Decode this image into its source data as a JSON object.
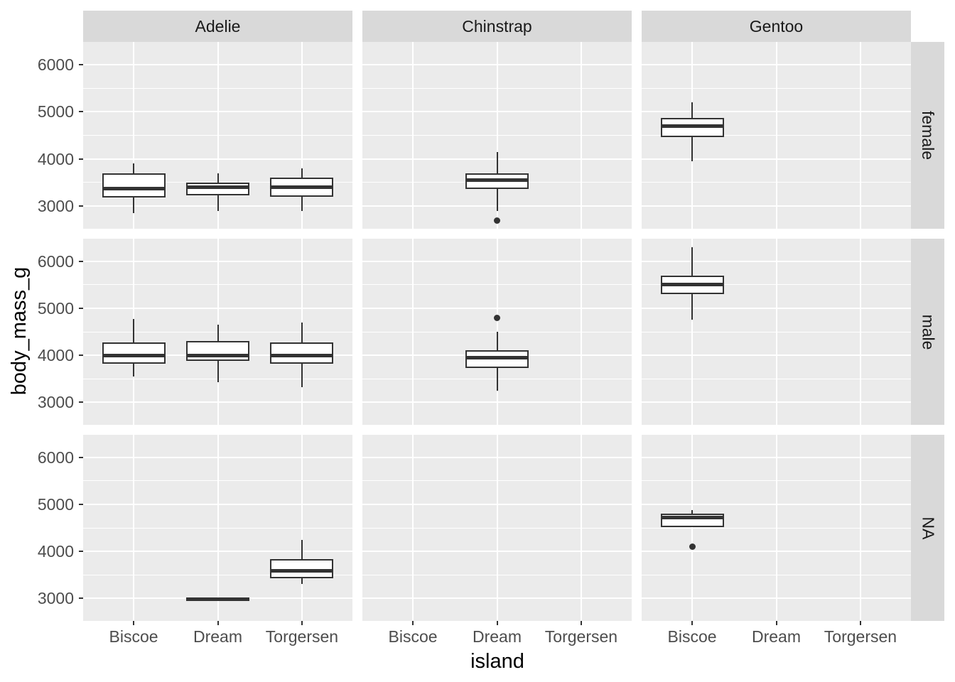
{
  "figure": {
    "background": "#FFFFFF"
  },
  "axes": {
    "x": {
      "label": "island",
      "categories": [
        "Biscoe",
        "Dream",
        "Torgersen"
      ]
    },
    "y": {
      "label": "body_mass_g",
      "tick_values": [
        6000,
        5000,
        4000,
        3000
      ],
      "minor_values": [
        5500,
        4500,
        3500
      ]
    }
  },
  "facets": {
    "col_labels": [
      "Adelie",
      "Chinstrap",
      "Gentoo"
    ],
    "row_labels": [
      "female",
      "male",
      "NA"
    ]
  },
  "theme": {
    "panel_bg": "#EBEBEB",
    "strip_bg": "#D9D9D9",
    "grid": "#FFFFFF",
    "box_stroke": "#333333",
    "box_fill": "#FFFFFF",
    "tick_text": "#4D4D4D",
    "strip_text": "#1A1A1A",
    "axis_title_text": "#000000",
    "tick_mark": "#333333"
  },
  "chart_data": {
    "type": "boxplot",
    "title": "",
    "xlabel": "island",
    "ylabel": "body_mass_g",
    "facet_columns": "species",
    "facet_rows": "sex",
    "ylim": [
      2520,
      6480
    ],
    "y_major_gridlines": [
      3000,
      4000,
      5000,
      6000
    ],
    "y_minor_gridlines": [
      3500,
      4500,
      5500
    ],
    "grid": "on",
    "boxes": [
      {
        "species": "Adelie",
        "sex": "female",
        "island": "Biscoe",
        "whisker_low": 2850,
        "q1": 3175,
        "median": 3375,
        "q3": 3700,
        "whisker_high": 3900,
        "outliers": []
      },
      {
        "species": "Adelie",
        "sex": "female",
        "island": "Dream",
        "whisker_low": 2900,
        "q1": 3225,
        "median": 3400,
        "q3": 3500,
        "whisker_high": 3700,
        "outliers": []
      },
      {
        "species": "Adelie",
        "sex": "female",
        "island": "Torgersen",
        "whisker_low": 2900,
        "q1": 3200,
        "median": 3400,
        "q3": 3600,
        "whisker_high": 3800,
        "outliers": []
      },
      {
        "species": "Chinstrap",
        "sex": "female",
        "island": "Dream",
        "whisker_low": 2900,
        "q1": 3362,
        "median": 3550,
        "q3": 3694,
        "whisker_high": 4150,
        "outliers": [
          2700
        ]
      },
      {
        "species": "Gentoo",
        "sex": "female",
        "island": "Biscoe",
        "whisker_low": 3950,
        "q1": 4462,
        "median": 4700,
        "q3": 4875,
        "whisker_high": 5200,
        "outliers": []
      },
      {
        "species": "Adelie",
        "sex": "male",
        "island": "Biscoe",
        "whisker_low": 3550,
        "q1": 3825,
        "median": 4000,
        "q3": 4275,
        "whisker_high": 4775,
        "outliers": []
      },
      {
        "species": "Adelie",
        "sex": "male",
        "island": "Dream",
        "whisker_low": 3425,
        "q1": 3875,
        "median": 4000,
        "q3": 4300,
        "whisker_high": 4650,
        "outliers": []
      },
      {
        "species": "Adelie",
        "sex": "male",
        "island": "Torgersen",
        "whisker_low": 3325,
        "q1": 3825,
        "median": 4000,
        "q3": 4275,
        "whisker_high": 4700,
        "outliers": []
      },
      {
        "species": "Chinstrap",
        "sex": "male",
        "island": "Dream",
        "whisker_low": 3250,
        "q1": 3731,
        "median": 3950,
        "q3": 4100,
        "whisker_high": 4500,
        "outliers": [
          4800
        ]
      },
      {
        "species": "Gentoo",
        "sex": "male",
        "island": "Biscoe",
        "whisker_low": 4750,
        "q1": 5300,
        "median": 5500,
        "q3": 5700,
        "whisker_high": 6300,
        "outliers": []
      },
      {
        "species": "Adelie",
        "sex": "NA",
        "island": "Dream",
        "whisker_low": 2975,
        "q1": 2975,
        "median": 2975,
        "q3": 2975,
        "whisker_high": 2975,
        "outliers": []
      },
      {
        "species": "Adelie",
        "sex": "NA",
        "island": "Torgersen",
        "whisker_low": 3300,
        "q1": 3431,
        "median": 3588,
        "q3": 3838,
        "whisker_high": 4250,
        "outliers": []
      },
      {
        "species": "Gentoo",
        "sex": "NA",
        "island": "Biscoe",
        "whisker_low": 4512,
        "q1": 4512,
        "median": 4712,
        "q3": 4800,
        "whisker_high": 4875,
        "outliers": [
          4100
        ]
      }
    ]
  }
}
